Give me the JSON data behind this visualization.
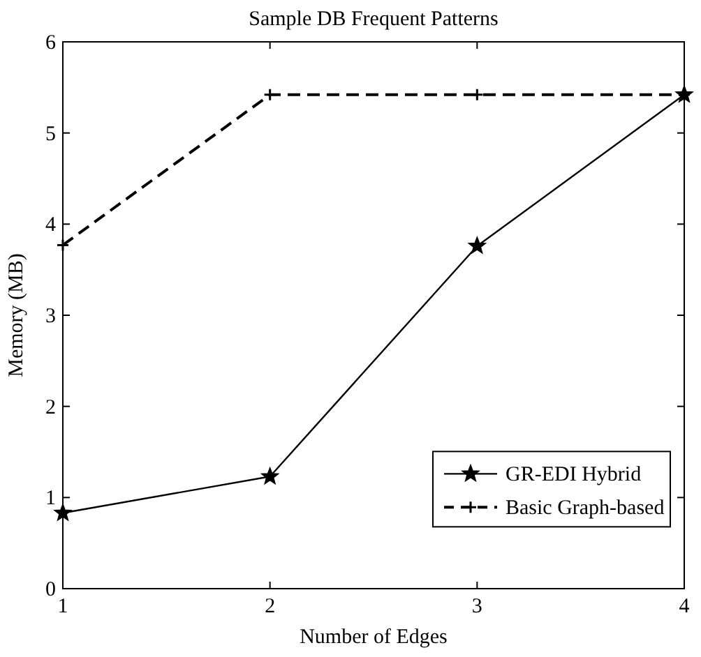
{
  "chart_data": {
    "type": "line",
    "title": "Sample DB Frequent Patterns",
    "xlabel": "Number of Edges",
    "ylabel": "Memory (MB)",
    "x": [
      1,
      2,
      3,
      4
    ],
    "xlim": [
      1,
      4
    ],
    "xticks": [
      1,
      2,
      3,
      4
    ],
    "ylim": [
      0,
      6
    ],
    "yticks": [
      0,
      1,
      2,
      3,
      4,
      5,
      6
    ],
    "grid": false,
    "legend": "bottom right",
    "series": [
      {
        "name": "GR-EDI Hybrid",
        "color": "#000000",
        "values": [
          0.83,
          1.23,
          3.76,
          5.42
        ],
        "marker": "star",
        "line_style": "solid"
      },
      {
        "name": "Basic Graph-based",
        "color": "#000000",
        "values": [
          3.77,
          5.42,
          5.42,
          5.42
        ],
        "marker": "cross",
        "line_style": "dashed"
      }
    ]
  }
}
